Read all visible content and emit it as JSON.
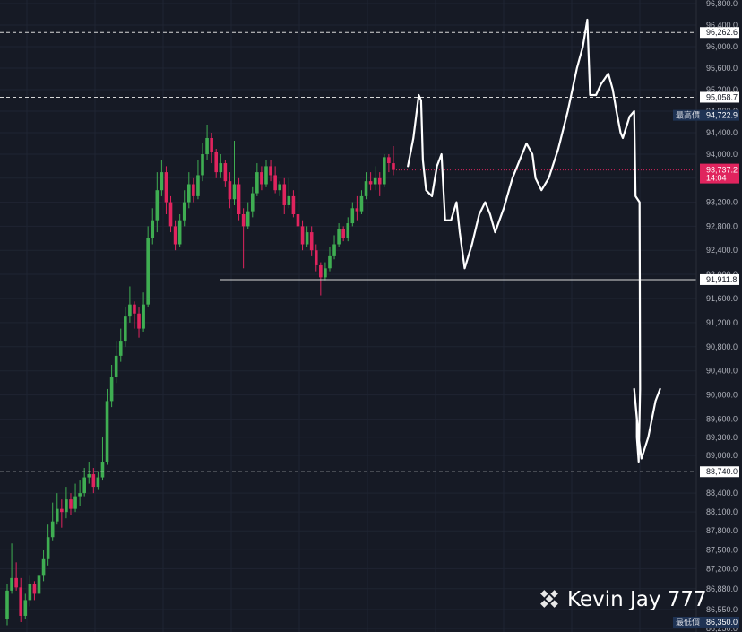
{
  "chart_data": {
    "type": "candlestick",
    "price_axis": {
      "ticks": [
        96800,
        96400,
        96000,
        95600,
        95200,
        94800,
        94400,
        94000,
        93600,
        93200,
        92800,
        92400,
        92000,
        91600,
        91200,
        90800,
        90400,
        90000,
        89600,
        89300,
        89000,
        88400,
        88100,
        87800,
        87500,
        87200,
        86880,
        86550,
        86250
      ],
      "tick_labels": [
        "96,800.0",
        "96,400.0",
        "96,000.0",
        "95,600.0",
        "95,200.0",
        "94,800.0",
        "94,400.0",
        "94,000.0",
        "93,600.0",
        "93,200.0",
        "92,800.0",
        "92,400.0",
        "92,000.0",
        "91,600.0",
        "91,200.0",
        "90,800.0",
        "90,400.0",
        "90,000.0",
        "89,600.0",
        "89,300.0",
        "89,000.0",
        "88,400.0",
        "88,100.0",
        "87,800.0",
        "87,500.0",
        "87,200.0",
        "86,880.0",
        "86,550.0",
        "86,250.0"
      ]
    },
    "levels": [
      {
        "value": 96262.6,
        "label": "96,262.6",
        "style": "dashed"
      },
      {
        "value": 95058.7,
        "label": "95,058.7",
        "style": "dashed"
      },
      {
        "value": 91911.8,
        "label": "91,911.8",
        "style": "solid"
      },
      {
        "value": 88740.0,
        "label": "88,740.0",
        "style": "dashed"
      }
    ],
    "high_marker": {
      "tag": "最高價",
      "value": 94722.9,
      "label": "94,722.9"
    },
    "low_marker": {
      "tag": "最低價",
      "value": 86350.0,
      "label": "86,350.0"
    },
    "current_price": {
      "value": 93737.2,
      "label": "93,737.2",
      "countdown": "14:04"
    },
    "candles": [
      [
        86400,
        86850,
        86300,
        86950
      ],
      [
        86850,
        87050,
        86800,
        87600
      ],
      [
        87050,
        86900,
        86850,
        87300
      ],
      [
        86900,
        86450,
        86350,
        87050
      ],
      [
        86450,
        86700,
        86400,
        86800
      ],
      [
        86700,
        86950,
        86600,
        87100
      ],
      [
        86950,
        86800,
        86700,
        87000
      ],
      [
        86800,
        87100,
        86750,
        87300
      ],
      [
        87100,
        87350,
        87000,
        87500
      ],
      [
        87350,
        87700,
        87250,
        87900
      ],
      [
        87700,
        87950,
        87650,
        88250
      ],
      [
        87950,
        88150,
        87900,
        88400
      ],
      [
        88150,
        88100,
        87850,
        88300
      ],
      [
        88100,
        88300,
        88000,
        88500
      ],
      [
        88300,
        88150,
        88050,
        88400
      ],
      [
        88150,
        88350,
        88100,
        88550
      ],
      [
        88350,
        88400,
        88200,
        88600
      ],
      [
        88400,
        88650,
        88350,
        88800
      ],
      [
        88650,
        88700,
        88550,
        88900
      ],
      [
        88700,
        88500,
        88400,
        88800
      ],
      [
        88500,
        88650,
        88450,
        88750
      ],
      [
        88650,
        88900,
        88600,
        89300
      ],
      [
        88900,
        89900,
        88850,
        90100
      ],
      [
        89900,
        90300,
        89800,
        90500
      ],
      [
        90300,
        90650,
        90200,
        90900
      ],
      [
        90650,
        90900,
        90550,
        91100
      ],
      [
        90900,
        91300,
        90800,
        91450
      ],
      [
        91300,
        91500,
        91200,
        91800
      ],
      [
        91500,
        91350,
        91100,
        91550
      ],
      [
        91350,
        91100,
        90950,
        91450
      ],
      [
        91100,
        91500,
        91050,
        91700
      ],
      [
        91500,
        92600,
        91450,
        92800
      ],
      [
        92600,
        92900,
        92500,
        93100
      ],
      [
        92900,
        93400,
        92700,
        93700
      ],
      [
        93400,
        93700,
        93300,
        93900
      ],
      [
        93700,
        93200,
        93000,
        93800
      ],
      [
        93200,
        92800,
        92700,
        93300
      ],
      [
        92800,
        92500,
        92400,
        92900
      ],
      [
        92500,
        92900,
        92450,
        93000
      ],
      [
        92900,
        93200,
        92800,
        93400
      ],
      [
        93200,
        93500,
        93100,
        93700
      ],
      [
        93500,
        93300,
        93200,
        93600
      ],
      [
        93300,
        93650,
        93250,
        93900
      ],
      [
        93650,
        94000,
        93550,
        94200
      ],
      [
        94000,
        94300,
        93900,
        94550
      ],
      [
        94300,
        94050,
        93850,
        94400
      ],
      [
        94050,
        93700,
        93600,
        94100
      ],
      [
        93700,
        93850,
        93600,
        94000
      ],
      [
        93850,
        93550,
        93450,
        93900
      ],
      [
        93550,
        93250,
        93100,
        93700
      ],
      [
        93250,
        93500,
        93150,
        94250
      ],
      [
        93500,
        93000,
        92900,
        93600
      ],
      [
        93000,
        92800,
        92100,
        93100
      ],
      [
        92800,
        93050,
        92750,
        93200
      ],
      [
        93050,
        93350,
        92950,
        93450
      ],
      [
        93350,
        93700,
        93300,
        93850
      ],
      [
        93700,
        93500,
        93400,
        93800
      ],
      [
        93500,
        93800,
        93450,
        93900
      ],
      [
        93800,
        93650,
        93550,
        93900
      ],
      [
        93650,
        93400,
        93350,
        93800
      ],
      [
        93400,
        93500,
        93300,
        93550
      ],
      [
        93500,
        93150,
        93000,
        93600
      ],
      [
        93150,
        93300,
        93100,
        93600
      ],
      [
        93300,
        93000,
        92950,
        93400
      ],
      [
        93000,
        92800,
        92700,
        93100
      ],
      [
        92800,
        92500,
        92400,
        92900
      ],
      [
        92500,
        92700,
        92450,
        92800
      ],
      [
        92700,
        92400,
        92300,
        92800
      ],
      [
        92400,
        92150,
        92050,
        92500
      ],
      [
        92150,
        91950,
        91650,
        92200
      ],
      [
        91950,
        92100,
        91900,
        92200
      ],
      [
        92100,
        92300,
        92050,
        92450
      ],
      [
        92300,
        92500,
        92250,
        92650
      ],
      [
        92500,
        92750,
        92450,
        92850
      ],
      [
        92750,
        92600,
        92550,
        92800
      ],
      [
        92600,
        92850,
        92550,
        92950
      ],
      [
        92850,
        93100,
        92800,
        93200
      ],
      [
        93100,
        93050,
        92900,
        93300
      ],
      [
        93050,
        93300,
        93000,
        93400
      ],
      [
        93300,
        93550,
        93250,
        93700
      ],
      [
        93550,
        93500,
        93400,
        93700
      ],
      [
        93500,
        93600,
        93400,
        93800
      ],
      [
        93600,
        93500,
        93300,
        93700
      ],
      [
        93500,
        93950,
        93450,
        94000
      ],
      [
        93950,
        93850,
        93700,
        94000
      ],
      [
        93850,
        93737.2,
        93650,
        94150
      ]
    ],
    "drawing_path": [
      [
        88.2,
        93800
      ],
      [
        89.4,
        94300
      ],
      [
        90.6,
        95100
      ],
      [
        91.1,
        95000
      ],
      [
        91.5,
        93900
      ],
      [
        92.2,
        93400
      ],
      [
        93.5,
        93300
      ],
      [
        94.6,
        93800
      ],
      [
        95.6,
        94000
      ],
      [
        96.4,
        92900
      ],
      [
        97.7,
        92900
      ],
      [
        98.9,
        93200
      ],
      [
        99.6,
        92700
      ],
      [
        100.7,
        92100
      ],
      [
        102.3,
        92500
      ],
      [
        103.9,
        93000
      ],
      [
        105.2,
        93200
      ],
      [
        106.3,
        93000
      ],
      [
        107.4,
        92700
      ],
      [
        109.3,
        93100
      ],
      [
        111.2,
        93600
      ],
      [
        112.8,
        93900
      ],
      [
        114.3,
        94200
      ],
      [
        115.6,
        94000
      ],
      [
        116.3,
        93600
      ],
      [
        117.6,
        93400
      ],
      [
        119.2,
        93600
      ],
      [
        121.3,
        94100
      ],
      [
        123.4,
        94800
      ],
      [
        125.4,
        95600
      ],
      [
        126.7,
        96000
      ],
      [
        127.7,
        96500
      ],
      [
        128.3,
        95100
      ],
      [
        129.6,
        95100
      ],
      [
        130.7,
        95300
      ],
      [
        132.3,
        95500
      ],
      [
        133.3,
        95200
      ],
      [
        134.1,
        94800
      ],
      [
        135.0,
        94400
      ],
      [
        135.5,
        94300
      ],
      [
        137.0,
        94700
      ],
      [
        138.0,
        94800
      ],
      [
        138.3,
        93300
      ],
      [
        139.2,
        93200
      ],
      [
        139.3,
        90100
      ],
      [
        139.0,
        88900
      ],
      [
        138.6,
        89300
      ],
      [
        138.6,
        89600
      ],
      [
        138.0,
        90100
      ],
      [
        139.0,
        89300
      ],
      [
        139.6,
        88950
      ],
      [
        141.1,
        89300
      ],
      [
        142.7,
        89900
      ],
      [
        143.7,
        90100
      ]
    ],
    "drawing_arrow": {
      "tip": [
        138.8,
        89300
      ]
    }
  },
  "watermark": {
    "text": "Kevin Jay 777"
  }
}
